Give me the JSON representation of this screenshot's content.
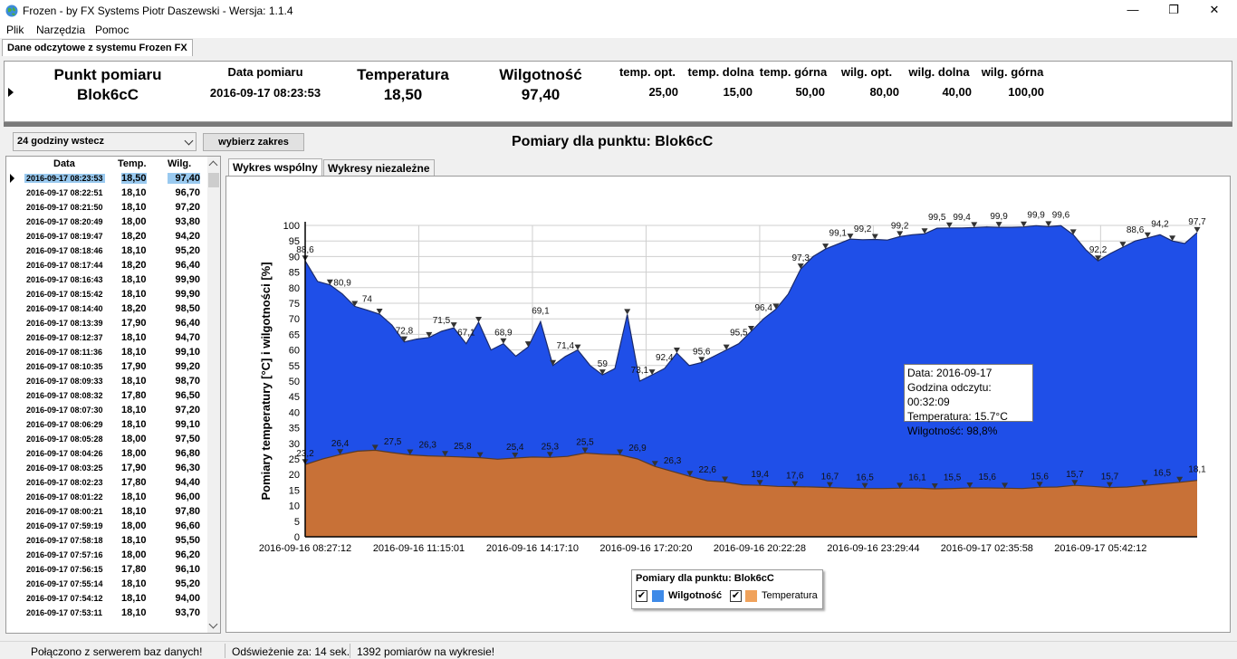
{
  "window": {
    "title": "Frozen - by FX Systems Piotr Daszewski - Wersja: 1.1.4",
    "minimize": "—",
    "restore": "❐",
    "close": "✕"
  },
  "menu": [
    "Plik",
    "Narzędzia",
    "Pomoc"
  ],
  "main_tab": "Dane odczytowe z systemu Frozen FX",
  "summary": {
    "headers": {
      "point": "Punkt pomiaru",
      "date": "Data pomiaru",
      "temp": "Temperatura",
      "hum": "Wilgotność",
      "temp_opt": "temp. opt.",
      "temp_low": "temp. dolna",
      "temp_high": "temp. górna",
      "hum_opt": "wilg. opt.",
      "hum_low": "wilg. dolna",
      "hum_high": "wilg. górna"
    },
    "values": {
      "point": "Blok6cC",
      "date": "2016-09-17 08:23:53",
      "temp": "18,50",
      "hum": "97,40",
      "temp_opt": "25,00",
      "temp_low": "15,00",
      "temp_high": "50,00",
      "hum_opt": "80,00",
      "hum_low": "40,00",
      "hum_high": "100,00"
    }
  },
  "controls": {
    "range_select": "24 godziny wstecz",
    "range_button": "wybierz zakres",
    "chart_heading": "Pomiary dla punktu: Blok6cC"
  },
  "table": {
    "headers": {
      "date": "Data",
      "temp": "Temp.",
      "hum": "Wilg."
    },
    "rows": [
      [
        "2016-09-17 08:23:53",
        "18,50",
        "97,40"
      ],
      [
        "2016-09-17 08:22:51",
        "18,10",
        "96,70"
      ],
      [
        "2016-09-17 08:21:50",
        "18,10",
        "97,20"
      ],
      [
        "2016-09-17 08:20:49",
        "18,00",
        "93,80"
      ],
      [
        "2016-09-17 08:19:47",
        "18,20",
        "94,20"
      ],
      [
        "2016-09-17 08:18:46",
        "18,10",
        "95,20"
      ],
      [
        "2016-09-17 08:17:44",
        "18,20",
        "96,40"
      ],
      [
        "2016-09-17 08:16:43",
        "18,10",
        "99,90"
      ],
      [
        "2016-09-17 08:15:42",
        "18,10",
        "99,90"
      ],
      [
        "2016-09-17 08:14:40",
        "18,20",
        "98,50"
      ],
      [
        "2016-09-17 08:13:39",
        "17,90",
        "96,40"
      ],
      [
        "2016-09-17 08:12:37",
        "18,10",
        "94,70"
      ],
      [
        "2016-09-17 08:11:36",
        "18,10",
        "99,10"
      ],
      [
        "2016-09-17 08:10:35",
        "17,90",
        "99,20"
      ],
      [
        "2016-09-17 08:09:33",
        "18,10",
        "98,70"
      ],
      [
        "2016-09-17 08:08:32",
        "17,80",
        "96,50"
      ],
      [
        "2016-09-17 08:07:30",
        "18,10",
        "97,20"
      ],
      [
        "2016-09-17 08:06:29",
        "18,10",
        "99,10"
      ],
      [
        "2016-09-17 08:05:28",
        "18,00",
        "97,50"
      ],
      [
        "2016-09-17 08:04:26",
        "18,00",
        "96,80"
      ],
      [
        "2016-09-17 08:03:25",
        "17,90",
        "96,30"
      ],
      [
        "2016-09-17 08:02:23",
        "17,80",
        "94,40"
      ],
      [
        "2016-09-17 08:01:22",
        "18,10",
        "96,00"
      ],
      [
        "2016-09-17 08:00:21",
        "18,10",
        "97,80"
      ],
      [
        "2016-09-17 07:59:19",
        "18,00",
        "96,60"
      ],
      [
        "2016-09-17 07:58:18",
        "18,10",
        "95,50"
      ],
      [
        "2016-09-17 07:57:16",
        "18,00",
        "96,20"
      ],
      [
        "2016-09-17 07:56:15",
        "17,80",
        "96,10"
      ],
      [
        "2016-09-17 07:55:14",
        "18,10",
        "95,20"
      ],
      [
        "2016-09-17 07:54:12",
        "18,10",
        "94,00"
      ],
      [
        "2016-09-17 07:53:11",
        "18,10",
        "93,70"
      ]
    ]
  },
  "chart_tabs": [
    "Wykres wspólny",
    "Wykresy niezależne"
  ],
  "chart_data": {
    "type": "area",
    "ylabel": "Pomiary temperatury [°C] i wilgotności [%]",
    "ylim": [
      0,
      100
    ],
    "yticks": [
      0,
      5,
      10,
      15,
      20,
      25,
      30,
      35,
      40,
      45,
      50,
      55,
      60,
      65,
      70,
      75,
      80,
      85,
      90,
      95,
      100
    ],
    "xticks": [
      "2016-09-16 08:27:12",
      "2016-09-16 11:15:01",
      "2016-09-16 14:17:10",
      "2016-09-16 17:20:20",
      "2016-09-16 20:22:28",
      "2016-09-16 23:29:44",
      "2016-09-17 02:35:58",
      "2016-09-17 05:42:12"
    ],
    "grid": true,
    "series": [
      {
        "name": "Wilgotność",
        "color": "#1f4fe8",
        "values": [
          88.6,
          82,
          80.9,
          78,
          74,
          72.8,
          71.5,
          68,
          62.6,
          63.5,
          64,
          66,
          67.1,
          62,
          68.9,
          60,
          62,
          58,
          61,
          69.1,
          55,
          57.9,
          60,
          55,
          52,
          54,
          71.4,
          50,
          52,
          54,
          59,
          55,
          56,
          58,
          60,
          62,
          66,
          70,
          73.1,
          78,
          86,
          90,
          92.4,
          94,
          95.6,
          95.4,
          95.5,
          95.3,
          96.4,
          97,
          97.3,
          99.1,
          99.2,
          99.2,
          99.3,
          99.5,
          99.4,
          99.4,
          99.5,
          99.9,
          99.6,
          99.9,
          97,
          92.2,
          88.6,
          91,
          93,
          95,
          96,
          97,
          95,
          94.2,
          97.7
        ]
      },
      {
        "name": "Temperatura",
        "color": "#c87137",
        "values": [
          23.2,
          25,
          26.4,
          27.5,
          27.8,
          27,
          26.3,
          26,
          25.8,
          25.6,
          25.4,
          24.9,
          25.3,
          25.6,
          25.5,
          25.8,
          26.9,
          26.5,
          26.3,
          25,
          22.6,
          21,
          19.4,
          18,
          17.6,
          16.7,
          16.5,
          16.2,
          16.1,
          16,
          15.8,
          15.6,
          15.5,
          15.5,
          15.6,
          15.6,
          15.4,
          15.5,
          15.7,
          15.7,
          15.6,
          15.5,
          15.9,
          16,
          16.5,
          16.2,
          15.8,
          16,
          16.5,
          17,
          17.5,
          18.1
        ]
      }
    ],
    "humidity_labels": [
      "88,6",
      "80,9",
      "74",
      "72,8",
      "71,5",
      "67,1",
      "68,9",
      "69,1",
      "71,4",
      "59",
      "73,1",
      "92,4",
      "95,6",
      "95,5",
      "96,4",
      "97,3",
      "99,1",
      "99,2",
      "99,2",
      "99,5",
      "99,4",
      "99,9",
      "99,9",
      "99,6",
      "92,2",
      "88,6",
      "94,2",
      "97,7"
    ],
    "temperature_labels": [
      "23,2",
      "26,4",
      "27,5",
      "26,3",
      "25,8",
      "25,4",
      "25,3",
      "25,5",
      "26,9",
      "26,3",
      "22,6",
      "19,4",
      "17,6",
      "16,7",
      "16,5",
      "16,1",
      "15,5",
      "15,6",
      "15,6",
      "15,7",
      "15,7",
      "16,5",
      "18,1"
    ],
    "legend": {
      "title": "Pomiary dla punktu: Blok6cC",
      "items": [
        "Wilgotność",
        "Temperatura"
      ],
      "placement": "bottom-center"
    }
  },
  "tooltip": {
    "date": "Data: 2016-09-17",
    "time": "Godzina odczytu: 00:32:09",
    "temp": "Temperatura: 15.7°C",
    "hum": "Wilgotność: 98,8%"
  },
  "status": {
    "connection": "Połączono z serwerem baz danych!",
    "refresh": "Odświeżenie za: 14 sek.",
    "count": "1392 pomiarów na wykresie!"
  }
}
